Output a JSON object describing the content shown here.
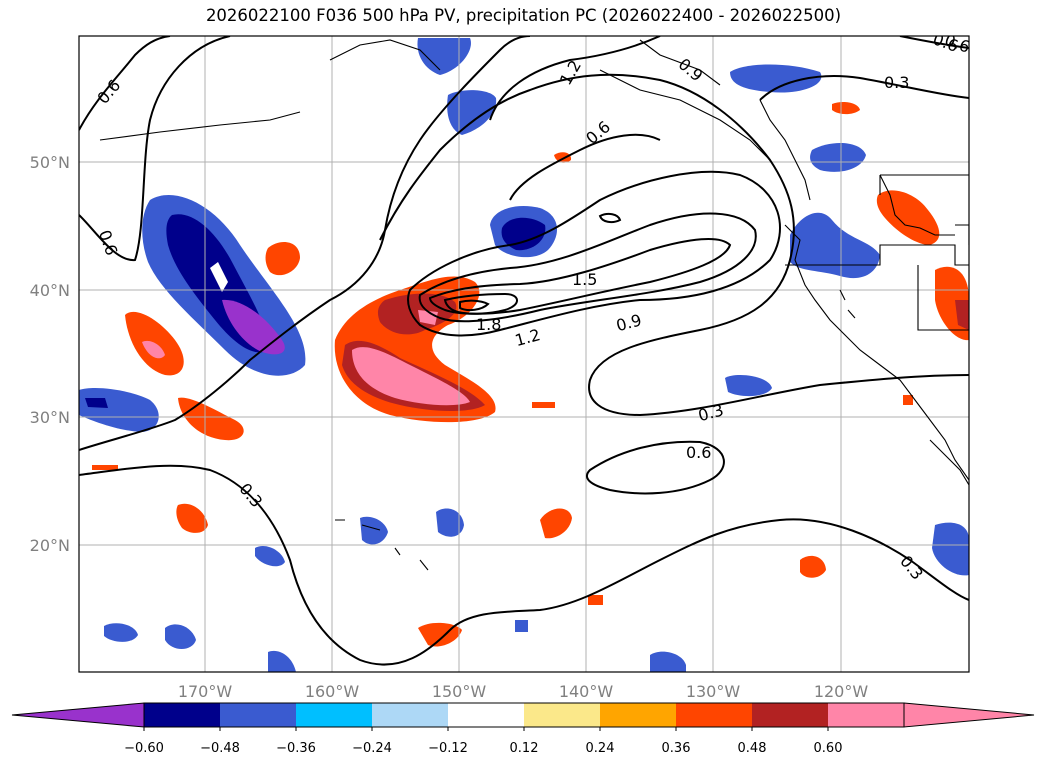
{
  "title": "2026022100 F036 500 hPa PV, precipitation PC (2026022400 - 2026022500)",
  "map": {
    "lon_labels": [
      "170°W",
      "160°W",
      "150°W",
      "140°W",
      "130°W",
      "120°W"
    ],
    "lat_labels": [
      "50°N",
      "40°N",
      "30°N",
      "20°N"
    ]
  },
  "pv_contour_labels": [
    "0.6",
    "0.6",
    "0.6",
    "1.2",
    "0.9",
    "0.6",
    "0.3",
    "1.5",
    "1.8",
    "1.2",
    "0.9",
    "0.3",
    "0.6",
    "0.3",
    "0.3",
    "0.6"
  ],
  "colorbar": {
    "colors": [
      "#9932cc",
      "#00008b",
      "#3a5bd0",
      "#00bfff",
      "#add8f6",
      "#ffffff",
      "#fbe88a",
      "#ffa500",
      "#ff4500",
      "#b22222",
      "#ff85a8",
      "#ff85a8"
    ],
    "ticks": [
      "−0.60",
      "−0.48",
      "−0.36",
      "−0.24",
      "−0.12",
      "0.12",
      "0.24",
      "0.36",
      "0.48",
      "0.60"
    ]
  }
}
